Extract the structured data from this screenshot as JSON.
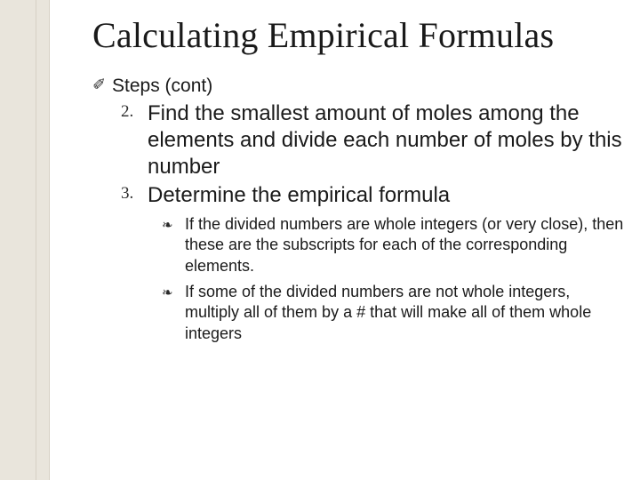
{
  "colors": {
    "background": "#ffffff",
    "sidebar": "#e9e5dc",
    "sidebar_line": "#d6d0c4",
    "text": "#1a1a1a"
  },
  "typography": {
    "title_font": "Georgia, serif",
    "title_size_pt": 30,
    "body_font": "Arial, sans-serif",
    "lvl1_size_pt": 16,
    "lvl2_size_pt": 18,
    "lvl3_size_pt": 14
  },
  "title": "Calculating Empirical Formulas",
  "lvl1": {
    "bullet_glyph": "✐",
    "text": "Steps (cont)"
  },
  "lvl2": [
    {
      "num": "2.",
      "text": "Find the smallest amount of moles among the elements and divide each number of moles by this number"
    },
    {
      "num": "3.",
      "text": "Determine the empirical formula"
    }
  ],
  "lvl3": {
    "bullet_glyph": "❧",
    "items": [
      "If the divided numbers are whole integers (or very close), then these are the subscripts for each of the corresponding elements.",
      "If some of the divided numbers are not whole integers, multiply all of them by a # that will make all of them whole integers"
    ]
  }
}
